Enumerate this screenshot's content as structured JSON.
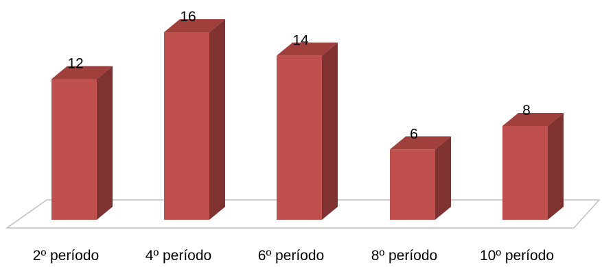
{
  "chart_data": {
    "type": "bar",
    "title": "",
    "xlabel": "",
    "ylabel": "",
    "categories": [
      "2º período",
      "4º período",
      "6º período",
      "8º período",
      "10º período"
    ],
    "values": [
      12,
      16,
      14,
      6,
      8
    ],
    "ylim": [
      0,
      16
    ],
    "grid": false,
    "legend": "none",
    "three_d": true,
    "colors": {
      "bar_front": "#C0504D",
      "bar_side": "#7F3230",
      "bar_top": "#A0403D",
      "floor_line": "#BFBFBF"
    }
  }
}
